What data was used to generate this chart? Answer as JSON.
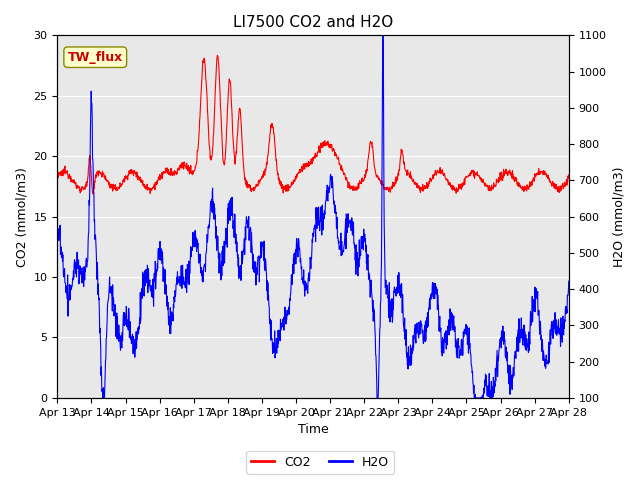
{
  "title": "LI7500 CO2 and H2O",
  "xlabel": "Time",
  "ylabel_left": "CO2 (mmol/m3)",
  "ylabel_right": "H2O (mmol/m3)",
  "ylim_left": [
    0,
    30
  ],
  "ylim_right": [
    100,
    1100
  ],
  "yticks_left": [
    0,
    5,
    10,
    15,
    20,
    25,
    30
  ],
  "yticks_right": [
    100,
    200,
    300,
    400,
    500,
    600,
    700,
    800,
    900,
    1000,
    1100
  ],
  "xtick_labels": [
    "Apr 13",
    "Apr 14",
    "Apr 15",
    "Apr 16",
    "Apr 17",
    "Apr 18",
    "Apr 19",
    "Apr 20",
    "Apr 21",
    "Apr 22",
    "Apr 23",
    "Apr 24",
    "Apr 25",
    "Apr 26",
    "Apr 27",
    "Apr 28"
  ],
  "co2_color": "#FF0000",
  "h2o_color": "#0000FF",
  "background_color": "#E8E8E8",
  "outer_background": "#FFFFFF",
  "site_label": "TW_flux",
  "site_label_color": "#CC0000",
  "site_label_bg": "#FFFFCC",
  "legend_co2": "CO2",
  "legend_h2o": "H2O",
  "title_fontsize": 11,
  "axis_label_fontsize": 9,
  "tick_fontsize": 8,
  "legend_fontsize": 9,
  "num_points": 1500
}
